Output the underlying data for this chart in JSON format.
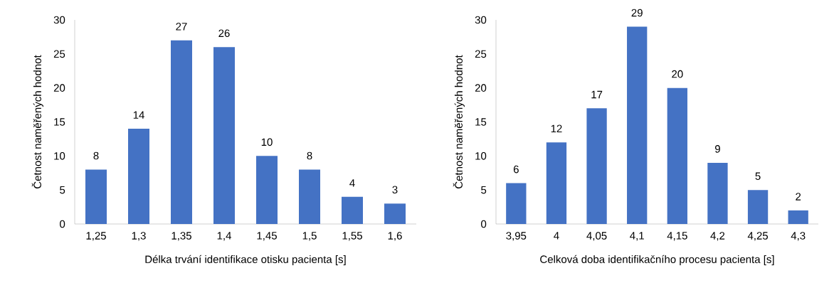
{
  "chart_data": [
    {
      "type": "bar",
      "xlabel": "Délka trvání identifikace otisku pacienta [s]",
      "ylabel": "Četnost naměřených hodnot",
      "categories": [
        "1,25",
        "1,3",
        "1,35",
        "1,4",
        "1,45",
        "1,5",
        "1,55",
        "1,6"
      ],
      "values": [
        8,
        14,
        27,
        26,
        10,
        8,
        4,
        3
      ],
      "value_labels": [
        "8",
        "14",
        "27",
        "26",
        "10",
        "8",
        "4",
        "3"
      ],
      "color": "#4472c4",
      "ylim": [
        0,
        30
      ],
      "yticks": [
        0,
        5,
        10,
        15,
        20,
        25,
        30
      ]
    },
    {
      "type": "bar",
      "xlabel": "Celková doba identifikačního procesu pacienta [s]",
      "ylabel": "Četnost naměřených hodnot",
      "categories": [
        "3,95",
        "4",
        "4,05",
        "4,1",
        "4,15",
        "4,2",
        "4,25",
        "4,3"
      ],
      "values": [
        6,
        12,
        17,
        29,
        20,
        9,
        5,
        2
      ],
      "value_labels": [
        "6",
        "12",
        "17",
        "29",
        "20",
        "9",
        "5",
        "2"
      ],
      "color": "#4472c4",
      "ylim": [
        0,
        30
      ],
      "yticks": [
        0,
        5,
        10,
        15,
        20,
        25,
        30
      ]
    }
  ]
}
